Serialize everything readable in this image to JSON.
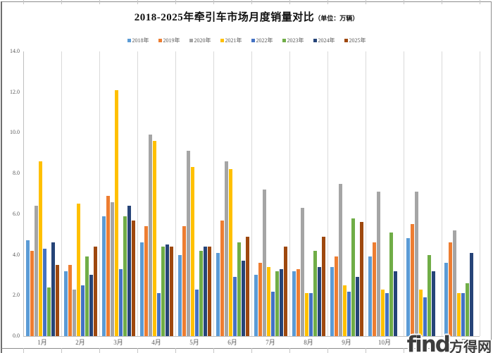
{
  "chart_data": {
    "type": "bar",
    "title": "2018-2025年牵引车市场月度销量对比",
    "title_unit": "（单位：万辆）",
    "categories": [
      "1月",
      "2月",
      "3月",
      "4月",
      "5月",
      "6月",
      "7月",
      "8月",
      "9月",
      "10月",
      "11月",
      "12月"
    ],
    "series": [
      {
        "name": "2018年",
        "color": "#5B9BD5",
        "values": [
          4.7,
          3.2,
          5.9,
          4.6,
          4.0,
          4.1,
          3.0,
          3.2,
          3.4,
          3.9,
          4.8,
          3.6
        ]
      },
      {
        "name": "2019年",
        "color": "#ED7D31",
        "values": [
          4.2,
          3.5,
          6.9,
          5.4,
          5.4,
          5.7,
          3.6,
          3.3,
          3.9,
          4.6,
          5.5,
          4.6
        ]
      },
      {
        "name": "2020年",
        "color": "#A5A5A5",
        "values": [
          6.4,
          2.3,
          6.6,
          9.9,
          9.1,
          8.6,
          7.2,
          6.3,
          7.5,
          7.1,
          7.1,
          5.2
        ]
      },
      {
        "name": "2021年",
        "color": "#FFC000",
        "values": [
          8.6,
          6.5,
          12.1,
          9.6,
          8.3,
          8.2,
          3.4,
          2.1,
          2.5,
          2.3,
          2.3,
          2.1
        ]
      },
      {
        "name": "2022年",
        "color": "#4472C4",
        "values": [
          4.3,
          2.5,
          3.3,
          2.1,
          2.3,
          2.9,
          2.2,
          2.1,
          2.2,
          2.1,
          1.9,
          2.1
        ]
      },
      {
        "name": "2023年",
        "color": "#70AD47",
        "values": [
          2.4,
          3.9,
          5.9,
          4.4,
          4.2,
          4.6,
          3.2,
          4.2,
          5.8,
          5.1,
          4.0,
          2.6
        ]
      },
      {
        "name": "2024年",
        "color": "#264478",
        "values": [
          4.6,
          3.0,
          6.4,
          4.5,
          4.4,
          3.7,
          3.3,
          3.4,
          2.9,
          3.2,
          3.2,
          4.1
        ]
      },
      {
        "name": "2025年",
        "color": "#9E480E",
        "values": [
          3.5,
          4.4,
          5.7,
          4.4,
          4.4,
          4.9,
          4.4,
          4.9,
          5.6,
          null,
          null,
          null
        ]
      }
    ],
    "ylim": [
      0,
      14
    ],
    "ytick_labels": [
      "0.0",
      "2.0",
      "4.0",
      "6.0",
      "8.0",
      "10.0",
      "12.0",
      "14.0"
    ],
    "grid": "vertical-category-separators",
    "legend_position": "top"
  },
  "watermark": {
    "logo_text": "find",
    "site_text": "方得网"
  }
}
